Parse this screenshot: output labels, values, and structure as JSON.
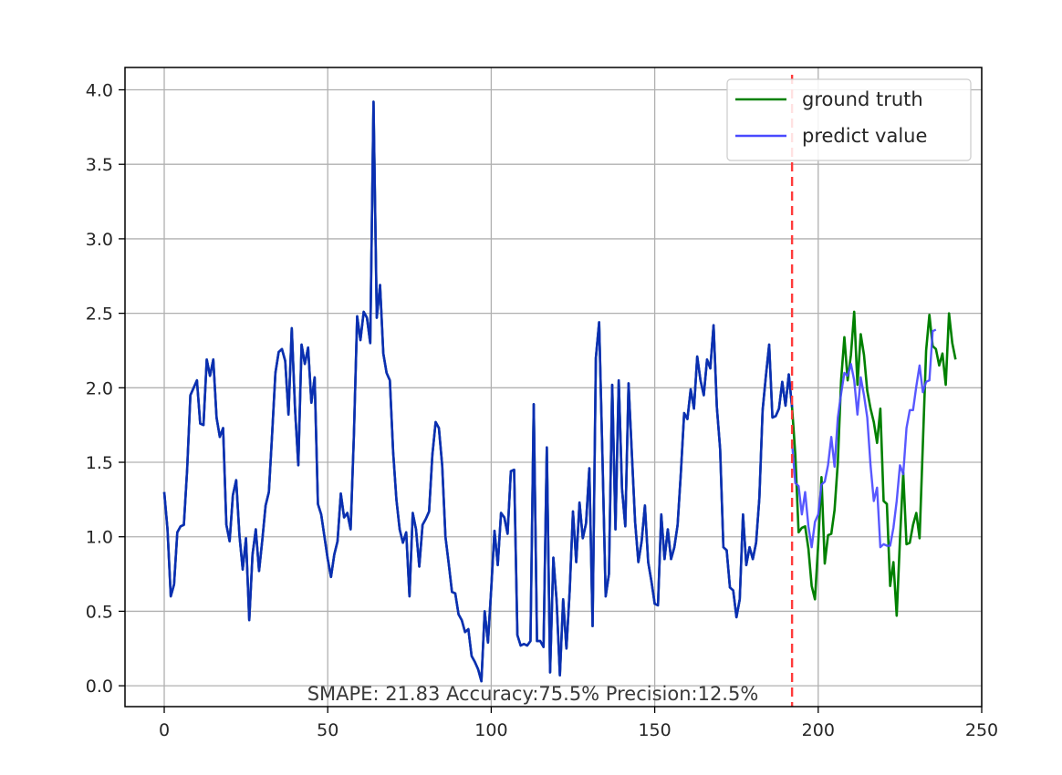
{
  "chart_data": {
    "type": "line",
    "title": "",
    "xlabel": "",
    "ylabel": "",
    "xlim": [
      -12,
      250
    ],
    "ylim": [
      -0.14,
      4.15
    ],
    "xticks": [
      0,
      50,
      100,
      150,
      200,
      250
    ],
    "yticks": [
      0.0,
      0.5,
      1.0,
      1.5,
      2.0,
      2.5,
      3.0,
      3.5,
      4.0
    ],
    "xtick_labels": [
      "0",
      "50",
      "100",
      "150",
      "200",
      "250"
    ],
    "ytick_labels": [
      "0.0",
      "0.5",
      "1.0",
      "1.5",
      "2.0",
      "2.5",
      "3.0",
      "3.5",
      "4.0"
    ],
    "grid": true,
    "legend_position": "top-right",
    "split_marker_x": 192,
    "colors": {
      "ground_truth": "#008000",
      "predict_value": "#4a4aff",
      "split_line": "#ff3b3b",
      "grid": "#b0b0b0"
    },
    "annotation": "SMAPE: 21.83 Accuracy:75.5% Precision:12.5%",
    "series": [
      {
        "name": "ground truth",
        "color": "#008000",
        "x_start": 0,
        "values": [
          1.3,
          1.05,
          0.6,
          0.68,
          1.03,
          1.07,
          1.08,
          1.45,
          1.95,
          2.0,
          2.05,
          1.76,
          1.75,
          2.19,
          2.08,
          2.19,
          1.8,
          1.67,
          1.73,
          1.08,
          0.97,
          1.28,
          1.38,
          1.01,
          0.78,
          0.99,
          0.44,
          0.88,
          1.05,
          0.77,
          0.98,
          1.21,
          1.3,
          1.69,
          2.1,
          2.24,
          2.26,
          2.18,
          1.82,
          2.4,
          1.86,
          1.48,
          2.29,
          2.16,
          2.27,
          1.9,
          2.07,
          1.22,
          1.15,
          1.0,
          0.85,
          0.73,
          0.88,
          0.97,
          1.29,
          1.13,
          1.16,
          1.05,
          1.68,
          2.48,
          2.32,
          2.51,
          2.47,
          2.3,
          3.92,
          2.47,
          2.69,
          2.23,
          2.1,
          2.05,
          1.57,
          1.25,
          1.05,
          0.96,
          1.03,
          0.6,
          1.16,
          1.05,
          0.8,
          1.08,
          1.12,
          1.17,
          1.55,
          1.77,
          1.73,
          1.48,
          1.0,
          0.82,
          0.63,
          0.62,
          0.48,
          0.44,
          0.36,
          0.38,
          0.2,
          0.16,
          0.11,
          0.03,
          0.5,
          0.29,
          0.65,
          1.04,
          0.81,
          1.16,
          1.13,
          1.02,
          1.44,
          1.45,
          0.34,
          0.27,
          0.28,
          0.27,
          0.3,
          1.89,
          0.3,
          0.3,
          0.26,
          1.6,
          0.09,
          0.86,
          0.57,
          0.07,
          0.58,
          0.25,
          0.64,
          1.17,
          0.83,
          1.23,
          0.99,
          1.09,
          1.46,
          0.4,
          2.2,
          2.44,
          1.55,
          0.6,
          0.75,
          2.02,
          1.05,
          2.05,
          1.32,
          1.07,
          2.03,
          1.56,
          1.1,
          0.83,
          0.97,
          1.21,
          0.83,
          0.7,
          0.55,
          0.54,
          1.15,
          0.85,
          1.05,
          0.85,
          0.93,
          1.08,
          1.43,
          1.83,
          1.79,
          1.99,
          1.86,
          2.21,
          2.05,
          1.95,
          2.19,
          2.13,
          2.42,
          1.87,
          1.59,
          0.93,
          0.91,
          0.66,
          0.64,
          0.46,
          0.58,
          1.15,
          0.81,
          0.93,
          0.85,
          0.96,
          1.26,
          1.85,
          2.08,
          2.29,
          1.8,
          1.81,
          1.86,
          2.04,
          1.88,
          2.09,
          1.87,
          1.55,
          1.03,
          1.06,
          1.07,
          0.92,
          0.67,
          0.58,
          0.95,
          1.4,
          0.82,
          1.01,
          1.02,
          1.18,
          1.5,
          2.05,
          2.34,
          2.05,
          2.22,
          2.51,
          2.02,
          2.36,
          2.22,
          1.98,
          1.86,
          1.77,
          1.63,
          1.86,
          1.24,
          1.22,
          0.67,
          0.83,
          0.47,
          0.98,
          1.43,
          0.95,
          0.96,
          1.08,
          1.16,
          0.99,
          1.62,
          2.25,
          2.49,
          2.28,
          2.26,
          2.15,
          2.23,
          2.02,
          2.5,
          2.3,
          2.19
        ]
      },
      {
        "name": "predict value",
        "color": "#4a4aff",
        "x_start": 192,
        "values": [
          1.63,
          1.36,
          1.34,
          1.15,
          1.3,
          1.07,
          0.93,
          1.1,
          1.15,
          1.35,
          1.37,
          1.48,
          1.67,
          1.47,
          1.8,
          1.96,
          2.1,
          2.08,
          2.16,
          2.05,
          1.82,
          2.07,
          1.95,
          1.8,
          1.48,
          1.24,
          1.33,
          0.93,
          0.95,
          0.94,
          0.94,
          1.06,
          1.24,
          1.48,
          1.42,
          1.73,
          1.85,
          1.85,
          2.01,
          2.15,
          1.97,
          2.04,
          2.05,
          2.38,
          2.39
        ]
      }
    ]
  }
}
